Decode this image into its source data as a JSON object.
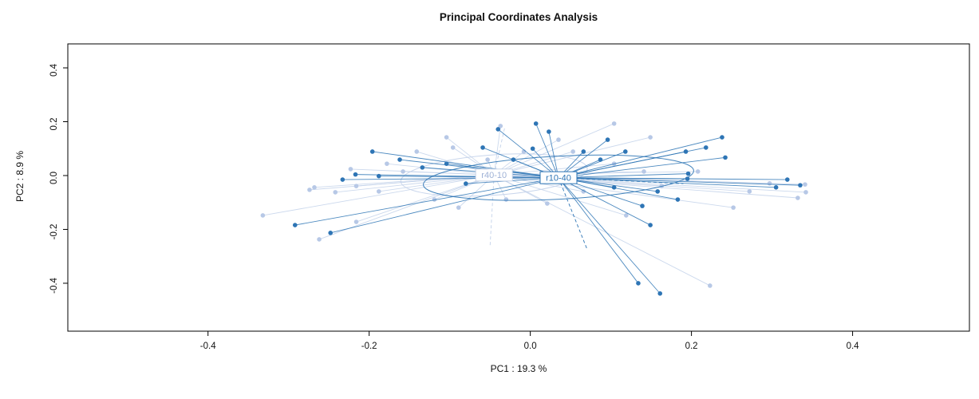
{
  "chart_data": {
    "type": "scatter",
    "title": "Principal Coordinates Analysis",
    "xlabel": "PC1 :  19.3 %",
    "ylabel": "PC2 :  8.9 %",
    "xlim": [
      -0.574,
      0.545
    ],
    "ylim": [
      -0.578,
      0.489
    ],
    "grid": false,
    "legend_position": "none",
    "point_radius": 2.8,
    "background": "#ffffff",
    "frame_color": "#000000",
    "xticks": [
      {
        "v": -0.4,
        "label": "-0.4"
      },
      {
        "v": -0.2,
        "label": "-0.2"
      },
      {
        "v": 0.0,
        "label": "0.0"
      },
      {
        "v": 0.2,
        "label": "0.2"
      },
      {
        "v": 0.4,
        "label": "0.4"
      }
    ],
    "yticks": [
      {
        "v": -0.4,
        "label": "-0.4"
      },
      {
        "v": -0.2,
        "label": "-0.2"
      },
      {
        "v": 0.0,
        "label": "0.0"
      },
      {
        "v": 0.2,
        "label": "0.2"
      },
      {
        "v": 0.4,
        "label": "0.4"
      }
    ],
    "groups": [
      {
        "name": "r40-10",
        "point_color": "#b7c8e6",
        "line_color": "#c3d2ea",
        "ellipse_color": "#c3d2ea",
        "label_color": "#9fb2d6",
        "label_border": "#c9d4e8",
        "centroid": [
          -0.045,
          0.002
        ],
        "ellipse": {
          "rx": 0.116,
          "ry": 0.075,
          "rotation": -4
        },
        "dashed_rays": [
          [
            -0.032,
            0.175
          ],
          [
            -0.05,
            -0.265
          ]
        ],
        "points": [
          [
            -0.332,
            -0.148
          ],
          [
            -0.262,
            -0.237
          ],
          [
            -0.274,
            -0.053
          ],
          [
            -0.223,
            0.024
          ],
          [
            -0.104,
            0.142
          ],
          [
            -0.037,
            0.184
          ],
          [
            0.035,
            0.133
          ],
          [
            0.104,
            0.193
          ],
          [
            0.149,
            0.142
          ],
          [
            0.272,
            -0.059
          ],
          [
            0.332,
            -0.083
          ],
          [
            0.223,
            -0.409
          ],
          [
            -0.242,
            -0.062
          ],
          [
            -0.268,
            -0.044
          ],
          [
            -0.216,
            -0.039
          ],
          [
            -0.188,
            -0.059
          ],
          [
            -0.141,
            0.089
          ],
          [
            -0.096,
            0.104
          ],
          [
            -0.053,
            0.059
          ],
          [
            -0.119,
            -0.089
          ],
          [
            -0.089,
            -0.119
          ],
          [
            -0.03,
            -0.089
          ],
          [
            0.021,
            -0.104
          ],
          [
            0.066,
            -0.059
          ],
          [
            0.104,
            0.044
          ],
          [
            0.141,
            0.015
          ],
          [
            0.163,
            -0.039
          ],
          [
            0.208,
            0.015
          ],
          [
            0.119,
            -0.148
          ],
          [
            0.053,
            0.089
          ],
          [
            -0.008,
            0.089
          ],
          [
            -0.158,
            0.015
          ],
          [
            -0.178,
            0.044
          ],
          [
            0.252,
            -0.119
          ],
          [
            0.297,
            -0.029
          ],
          [
            0.341,
            -0.033
          ],
          [
            -0.216,
            -0.172
          ],
          [
            0.342,
            -0.062
          ]
        ]
      },
      {
        "name": "r10-40",
        "point_color": "#2e75b5",
        "line_color": "#2e75b5",
        "ellipse_color": "#2e75b5",
        "label_color": "#2e75b5",
        "label_border": "#2e75b5",
        "centroid": [
          0.035,
          -0.008
        ],
        "ellipse": {
          "rx": 0.168,
          "ry": 0.08,
          "rotation": -3
        },
        "dashed_rays": [
          [
            0.19,
            -0.03
          ],
          [
            0.07,
            -0.27
          ]
        ],
        "points": [
          [
            -0.196,
            0.089
          ],
          [
            -0.04,
            0.172
          ],
          [
            0.003,
            0.1
          ],
          [
            0.023,
            0.163
          ],
          [
            0.193,
            0.089
          ],
          [
            0.218,
            0.104
          ],
          [
            0.238,
            0.142
          ],
          [
            0.319,
            -0.015
          ],
          [
            0.335,
            -0.036
          ],
          [
            0.195,
            -0.012
          ],
          [
            0.139,
            -0.113
          ],
          [
            0.149,
            -0.184
          ],
          [
            0.134,
            -0.4
          ],
          [
            0.161,
            -0.438
          ],
          [
            -0.233,
            -0.015
          ],
          [
            -0.248,
            -0.213
          ],
          [
            -0.292,
            -0.184
          ],
          [
            -0.134,
            0.03
          ],
          [
            -0.104,
            0.044
          ],
          [
            -0.188,
            -0.002
          ],
          [
            -0.217,
            0.004
          ],
          [
            -0.162,
            0.059
          ],
          [
            0.066,
            0.089
          ],
          [
            0.087,
            0.059
          ],
          [
            0.118,
            0.089
          ],
          [
            0.196,
            0.007
          ],
          [
            0.242,
            0.067
          ],
          [
            0.029,
            0.007
          ],
          [
            0.053,
            -0.015
          ],
          [
            0.104,
            -0.044
          ],
          [
            0.158,
            -0.059
          ],
          [
            0.096,
            0.133
          ],
          [
            0.007,
            0.193
          ],
          [
            -0.059,
            0.104
          ],
          [
            -0.021,
            0.059
          ],
          [
            0.305,
            -0.044
          ],
          [
            0.183,
            -0.089
          ],
          [
            -0.08,
            -0.03
          ]
        ]
      }
    ]
  }
}
